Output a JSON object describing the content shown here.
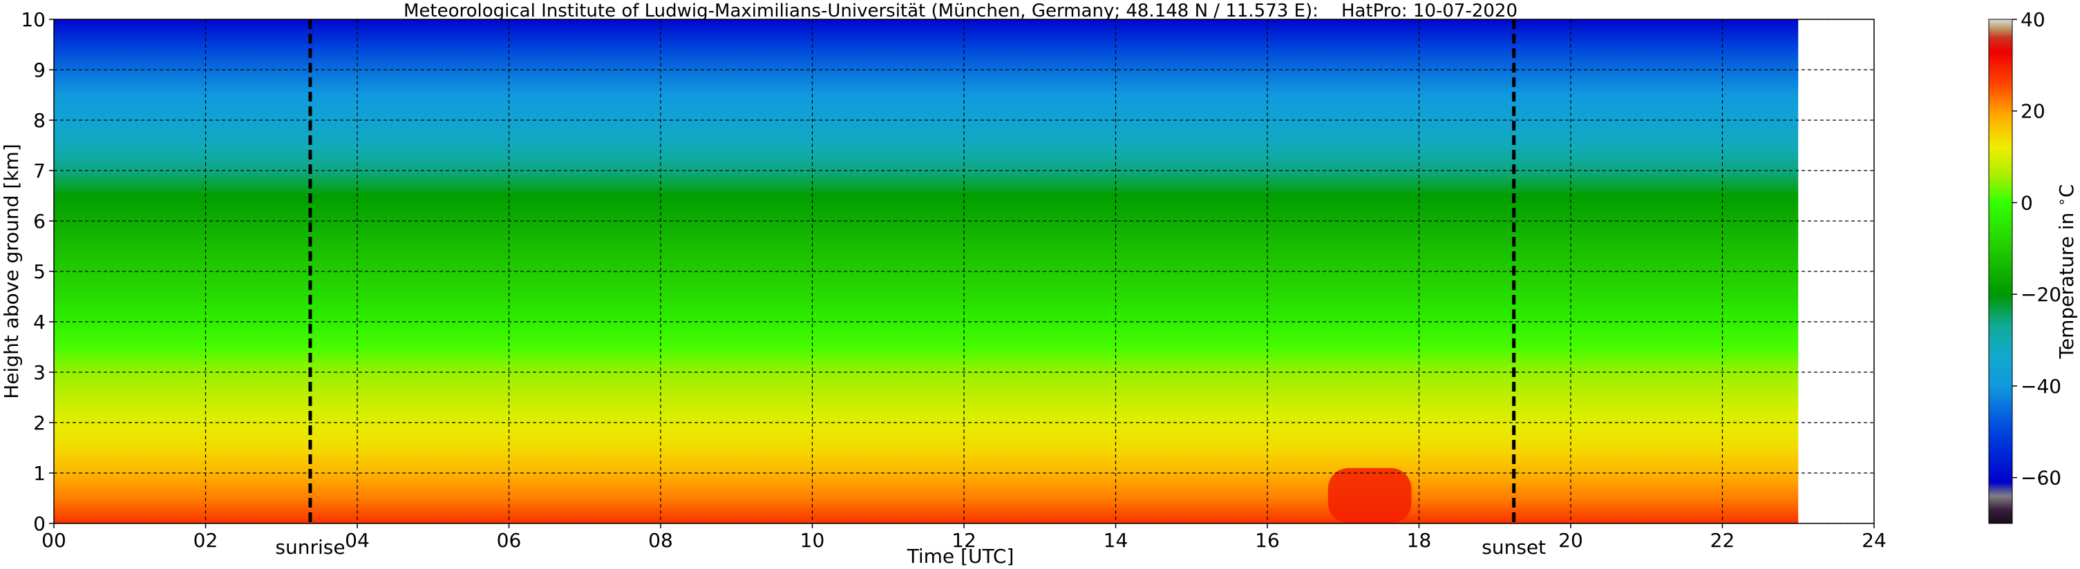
{
  "chart_data": {
    "type": "heatmap",
    "title": "Meteorological Institute of Ludwig-Maximilians-Universität (München, Germany; 48.148 N / 11.573 E):    HatPro: 10-07-2020",
    "xlabel": "Time [UTC]",
    "ylabel": "Height above ground [km]",
    "xlim": [
      0,
      24
    ],
    "ylim": [
      0,
      10
    ],
    "data_extent_x": [
      0,
      23
    ],
    "x_ticks": [
      "00",
      "02",
      "04",
      "06",
      "08",
      "10",
      "12",
      "14",
      "16",
      "18",
      "20",
      "22",
      "24"
    ],
    "x_tick_values": [
      0,
      2,
      4,
      6,
      8,
      10,
      12,
      14,
      16,
      18,
      20,
      22,
      24
    ],
    "y_ticks": [
      "0",
      "1",
      "2",
      "3",
      "4",
      "5",
      "6",
      "7",
      "8",
      "9",
      "10"
    ],
    "y_tick_values": [
      0,
      1,
      2,
      3,
      4,
      5,
      6,
      7,
      8,
      9,
      10
    ],
    "grid": true,
    "colorbar": {
      "label": "Temperature in $^\\circ$C",
      "range": [
        -70,
        40
      ],
      "ticks": [
        "−60",
        "−40",
        "−20",
        "0",
        "20",
        "40"
      ],
      "tick_values": [
        -60,
        -40,
        -20,
        0,
        20,
        40
      ],
      "colormap": [
        {
          "value": -70,
          "color": "#1a0a1a"
        },
        {
          "value": -67,
          "color": "#3a1f3f"
        },
        {
          "value": -64,
          "color": "#808080"
        },
        {
          "value": -61,
          "color": "#0000cc"
        },
        {
          "value": -50,
          "color": "#0044dd"
        },
        {
          "value": -40,
          "color": "#1199dd"
        },
        {
          "value": -33,
          "color": "#11aacc"
        },
        {
          "value": -27,
          "color": "#11aa99"
        },
        {
          "value": -20,
          "color": "#009900"
        },
        {
          "value": -10,
          "color": "#22cc00"
        },
        {
          "value": 0,
          "color": "#33ff00"
        },
        {
          "value": 6,
          "color": "#aaee00"
        },
        {
          "value": 12,
          "color": "#eeee00"
        },
        {
          "value": 19,
          "color": "#ffaa00"
        },
        {
          "value": 26,
          "color": "#ff4400"
        },
        {
          "value": 33,
          "color": "#ee0000"
        },
        {
          "value": 36,
          "color": "#cc3322"
        },
        {
          "value": 38,
          "color": "#bb9966"
        },
        {
          "value": 40,
          "color": "#dddddd"
        }
      ]
    },
    "temperature_profile": {
      "height_km": [
        0,
        0.5,
        1,
        1.5,
        2,
        2.5,
        3,
        3.5,
        4,
        4.5,
        5,
        5.5,
        6,
        6.5,
        7,
        7.5,
        8,
        8.5,
        9,
        9.5,
        10
      ],
      "temperature_c": [
        28,
        22,
        18,
        14,
        11,
        8,
        5,
        1,
        -3,
        -7,
        -10,
        -13,
        -16,
        -19,
        -26,
        -31,
        -36,
        -40,
        -45,
        -51,
        -60
      ],
      "afternoon_warm_layer": {
        "time_range": [
          16.8,
          17.9
        ],
        "height_range_km": [
          0,
          1.1
        ],
        "temperature_c": 30
      }
    },
    "vertical_markers": [
      {
        "label": "sunrise",
        "x": 3.38
      },
      {
        "label": "sunset",
        "x": 19.25
      }
    ]
  }
}
